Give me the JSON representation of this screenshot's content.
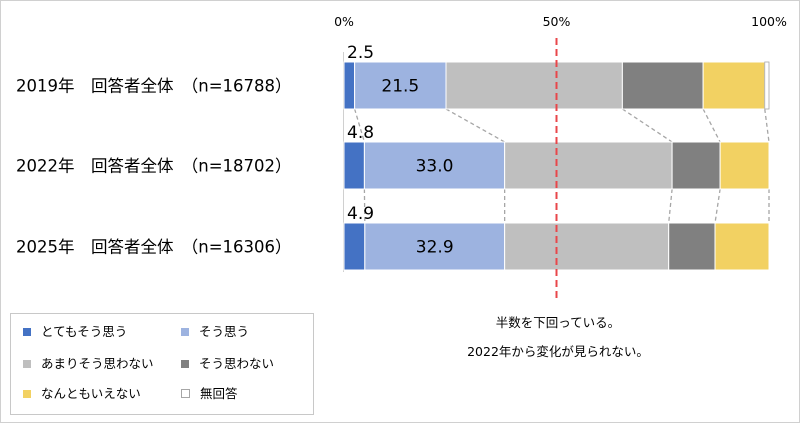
{
  "chart_data": {
    "type": "bar",
    "orientation": "horizontal",
    "stacked": true,
    "categories": [
      "2019年　回答者全体　（n=16788）",
      "2022年　回答者全体　（n=18702）",
      "2025年　回答者全体　（n=16306）"
    ],
    "series": [
      {
        "name": "とてもそう思う",
        "color": "#4472c4",
        "values": [
          2.5,
          4.8,
          4.9
        ],
        "labels": [
          "2.5",
          "4.8",
          "4.9"
        ]
      },
      {
        "name": "そう思う",
        "color": "#9db3e0",
        "values": [
          21.5,
          33.0,
          32.9
        ],
        "labels": [
          "21.5",
          "33.0",
          "32.9"
        ]
      },
      {
        "name": "あまりそう思わない",
        "color": "#bfbfbf",
        "values": [
          41.5,
          39.4,
          38.6
        ]
      },
      {
        "name": "そう思わない",
        "color": "#808080",
        "values": [
          19.0,
          11.3,
          10.9
        ]
      },
      {
        "name": "なんともいえない",
        "color": "#f2d162",
        "values": [
          14.5,
          11.5,
          12.7
        ]
      },
      {
        "name": "無回答",
        "color": "#ffffff",
        "values": [
          1.0,
          0.0,
          0.0
        ]
      }
    ],
    "xlim": [
      0,
      100
    ],
    "x_tick_labels": [
      "0%",
      "50%",
      "100%"
    ],
    "reference_line": {
      "value": 50,
      "color": "#e8464a",
      "style": "dashed"
    },
    "connector_lines": true,
    "grid": false,
    "legend_position": "bottom-left",
    "annotations": [
      "半数を下回っている。",
      "2022年から変化が見られない。"
    ]
  }
}
